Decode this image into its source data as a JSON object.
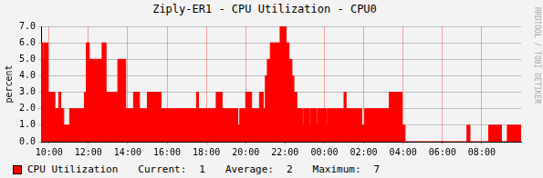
{
  "chart_data": {
    "type": "area",
    "title": "Ziply-ER1 - CPU Utilization - CPU0",
    "ylabel": "percent",
    "watermark": "RRDTOOL / TOBI OETIKER",
    "x": [
      9.6,
      9.7,
      9.75,
      9.85,
      9.9,
      9.95,
      10.3,
      10.5,
      10.6,
      10.75,
      11.05,
      11.8,
      11.9,
      12.05,
      12.7,
      12.9,
      13.5,
      13.9,
      14.3,
      14.6,
      15.0,
      15.7,
      17.5,
      17.6,
      18.5,
      18.8,
      19.6,
      19.7,
      20.0,
      20.3,
      20.7,
      20.9,
      21.0,
      21.1,
      21.25,
      21.75,
      22.05,
      22.2,
      22.35,
      22.45,
      22.6,
      22.9,
      22.95,
      23.25,
      23.3,
      23.6,
      23.65,
      24.1,
      24.15,
      25.0,
      25.1,
      25.9,
      26.05,
      27.3,
      27.95,
      28.1,
      31.25,
      31.4,
      32.35,
      33.0,
      33.3,
      34.0
    ],
    "series": [
      {
        "name": "CPU Utilization",
        "color": "#ff0000",
        "values": [
          6,
          5,
          6,
          4,
          6,
          3,
          2,
          3,
          2,
          1,
          2,
          3,
          6,
          5,
          6,
          3,
          5,
          2,
          3,
          2,
          3,
          2,
          3,
          2,
          3,
          2,
          1,
          2,
          3,
          2,
          3,
          2,
          4,
          5,
          6,
          7,
          6,
          5,
          4,
          3,
          2,
          1,
          2,
          1,
          2,
          1,
          2,
          1,
          2,
          3,
          2,
          1,
          2,
          3,
          1,
          0,
          1,
          0,
          1,
          0,
          1,
          1
        ]
      }
    ],
    "stats": [
      {
        "label": "Current:",
        "value": 1
      },
      {
        "label": "Average:",
        "value": 2
      },
      {
        "label": "Maximum:",
        "value": 7
      }
    ],
    "xlim": [
      9.6,
      34.0
    ],
    "xticks": [
      {
        "value": 10,
        "label": "10:00"
      },
      {
        "value": 12,
        "label": "12:00"
      },
      {
        "value": 14,
        "label": "14:00"
      },
      {
        "value": 16,
        "label": "16:00"
      },
      {
        "value": 18,
        "label": "18:00"
      },
      {
        "value": 20,
        "label": "20:00"
      },
      {
        "value": 22,
        "label": "22:00"
      },
      {
        "value": 24,
        "label": "00:00"
      },
      {
        "value": 26,
        "label": "02:00"
      },
      {
        "value": 28,
        "label": "04:00"
      },
      {
        "value": 30,
        "label": "06:00"
      },
      {
        "value": 32,
        "label": "08:00"
      }
    ],
    "ylim": [
      0,
      7
    ],
    "yticks": [
      {
        "value": 0,
        "label": "0.0"
      },
      {
        "value": 1,
        "label": "1.0"
      },
      {
        "value": 2,
        "label": "2.0"
      },
      {
        "value": 3,
        "label": "3.0"
      },
      {
        "value": 4,
        "label": "4.0"
      },
      {
        "value": 5,
        "label": "5.0"
      },
      {
        "value": 6,
        "label": "6.0"
      },
      {
        "value": 7,
        "label": "7.0"
      }
    ],
    "grid": true
  }
}
